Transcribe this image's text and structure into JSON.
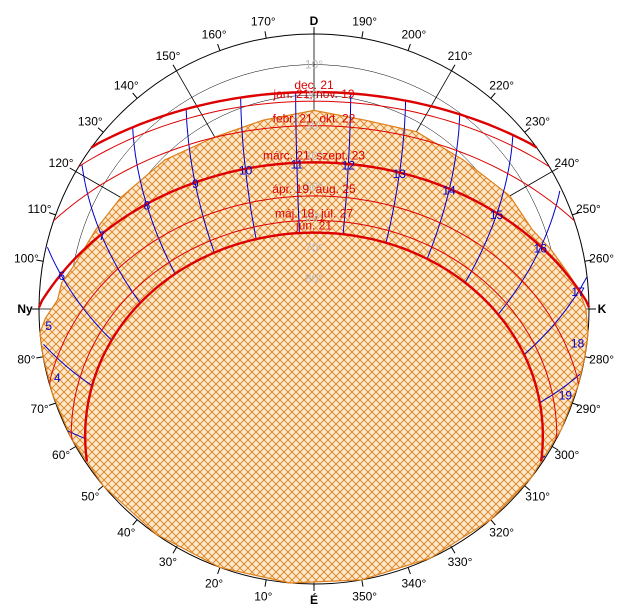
{
  "cardinals": {
    "north": "D",
    "south": "É",
    "west": "Ny",
    "east": "K"
  },
  "bearings": [
    {
      "text": "10°",
      "az": 10
    },
    {
      "text": "20°",
      "az": 20
    },
    {
      "text": "30°",
      "az": 30
    },
    {
      "text": "40°",
      "az": 40
    },
    {
      "text": "50°",
      "az": 50
    },
    {
      "text": "60°",
      "az": 60
    },
    {
      "text": "70°",
      "az": 70
    },
    {
      "text": "80°",
      "az": 80
    },
    {
      "text": "100°",
      "az": 100
    },
    {
      "text": "110°",
      "az": 110
    },
    {
      "text": "120°",
      "az": 120
    },
    {
      "text": "130°",
      "az": 130
    },
    {
      "text": "140°",
      "az": 140
    },
    {
      "text": "150°",
      "az": 150
    },
    {
      "text": "160°",
      "az": 160
    },
    {
      "text": "170°",
      "az": 170
    },
    {
      "text": "190°",
      "az": 190
    },
    {
      "text": "200°",
      "az": 200
    },
    {
      "text": "210°",
      "az": 210
    },
    {
      "text": "220°",
      "az": 220
    },
    {
      "text": "230°",
      "az": 230
    },
    {
      "text": "240°",
      "az": 240
    },
    {
      "text": "250°",
      "az": 250
    },
    {
      "text": "260°",
      "az": 260
    },
    {
      "text": "280°",
      "az": 280
    },
    {
      "text": "290°",
      "az": 290
    },
    {
      "text": "300°",
      "az": 300
    },
    {
      "text": "310°",
      "az": 310
    },
    {
      "text": "320°",
      "az": 320
    },
    {
      "text": "330°",
      "az": 330
    },
    {
      "text": "340°",
      "az": 340
    },
    {
      "text": "350°",
      "az": 350
    }
  ],
  "altitude_labels": [
    "10°",
    "20°",
    "30°",
    "40°",
    "50°",
    "60°",
    "70°",
    "80°"
  ],
  "date_curves": [
    {
      "label": "dec. 21",
      "noon_alt": 19,
      "emphasis": true
    },
    {
      "label": "jan. 21, nov. 19",
      "noon_alt": 22
    },
    {
      "label": "febr. 21, okt. 22",
      "noon_alt": 30
    },
    {
      "label": "márc. 21, szept. 23",
      "noon_alt": 42,
      "emphasis": true
    },
    {
      "label": "ápr. 19, aug. 25",
      "noon_alt": 53
    },
    {
      "label": "máj. 18, júl. 27",
      "noon_alt": 61
    },
    {
      "label": "jún. 21",
      "noon_alt": 65,
      "emphasis": true
    }
  ],
  "hour_labels": [
    "4",
    "5",
    "6",
    "7",
    "8",
    "9",
    "10",
    "11",
    "12",
    "13",
    "14",
    "15",
    "16",
    "17",
    "18",
    "19"
  ],
  "shading_profile": {
    "azimuths": [
      88,
      92,
      96,
      100,
      104,
      110,
      120,
      135,
      150,
      165,
      180,
      195,
      210,
      225,
      240,
      250,
      256,
      262,
      266,
      270,
      275,
      280,
      286,
      296,
      308,
      320,
      335,
      350,
      5,
      20,
      35,
      50,
      62,
      72,
      80,
      85
    ],
    "altitudes": [
      2,
      6,
      7,
      10,
      12,
      14,
      17,
      21,
      25,
      26,
      25,
      26,
      23,
      21,
      16,
      14,
      10,
      6,
      3,
      1,
      0,
      0,
      0,
      0,
      0,
      0,
      0,
      0,
      0,
      0,
      0,
      0,
      0,
      0,
      0,
      0
    ]
  },
  "colors": {
    "background": "#ffffff",
    "grid": "#000000",
    "altitude_label": "#bbbbbb",
    "date_curve": "#dd0000",
    "hour_curve": "#0000cc",
    "hour_label": "#0000cc",
    "shading_stroke": "#e0801a",
    "shading_fill": "#fce8cc"
  }
}
